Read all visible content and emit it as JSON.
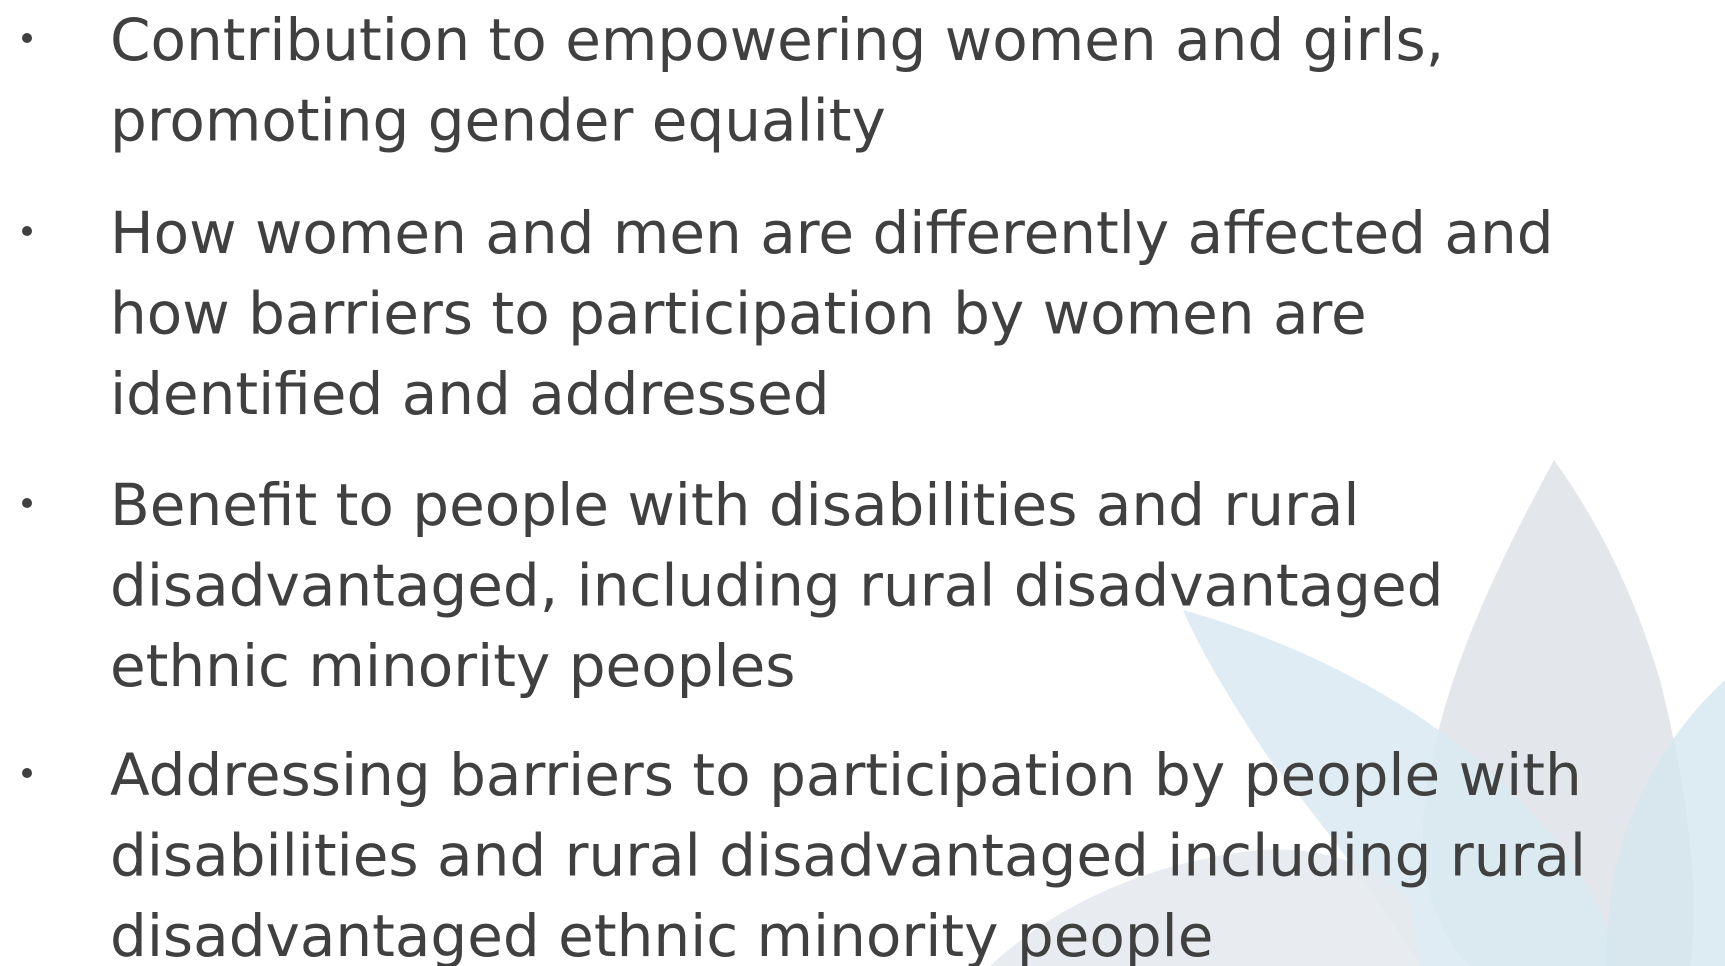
{
  "bullets": [
    [
      "Contribution to empowering women and girls,",
      "promoting gender equality"
    ],
    [
      "How women and men are differently affected and",
      "how barriers to participation by women are",
      "identified and addressed"
    ],
    [
      "Benefit to people with disabilities and rural",
      "disadvantaged, including rural disadvantaged",
      "ethnic minority peoples"
    ],
    [
      "Addressing barriers to participation by people with",
      "disabilities and rural disadvantaged including rural",
      "disadvantaged ethnic minority people"
    ]
  ]
}
